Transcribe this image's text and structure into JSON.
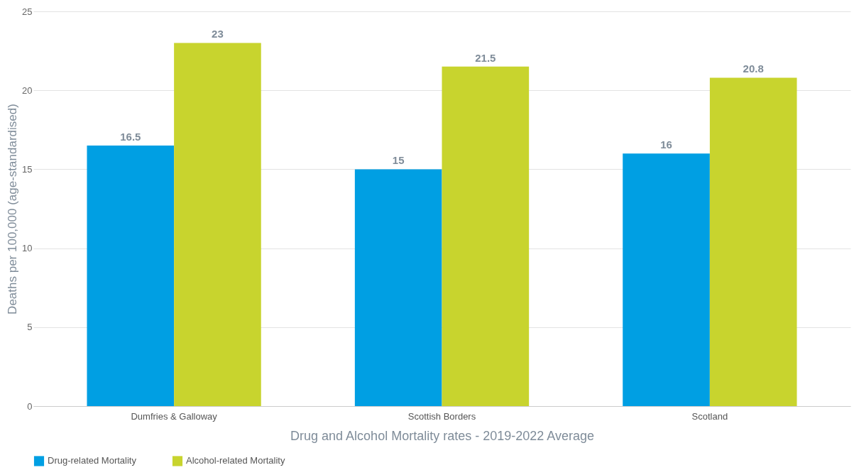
{
  "chart_data": {
    "type": "bar",
    "xlabel": "Drug and Alcohol Mortality rates - 2019-2022 Average",
    "ylabel": "Deaths per 100,000 (age-standardised)",
    "categories": [
      "Dumfries & Galloway",
      "Scottish Borders",
      "Scotland"
    ],
    "series": [
      {
        "name": "Drug-related Mortality",
        "color": "#009fe3",
        "values": [
          16.5,
          15,
          16
        ]
      },
      {
        "name": "Alcohol-related Mortality",
        "color": "#c8d42e",
        "values": [
          23,
          21.5,
          20.8
        ]
      }
    ],
    "ylim": [
      0,
      25
    ],
    "yticks": [
      0,
      5,
      10,
      15,
      20,
      25
    ],
    "grid": "y",
    "legend": "bottom",
    "data_labels": true
  }
}
